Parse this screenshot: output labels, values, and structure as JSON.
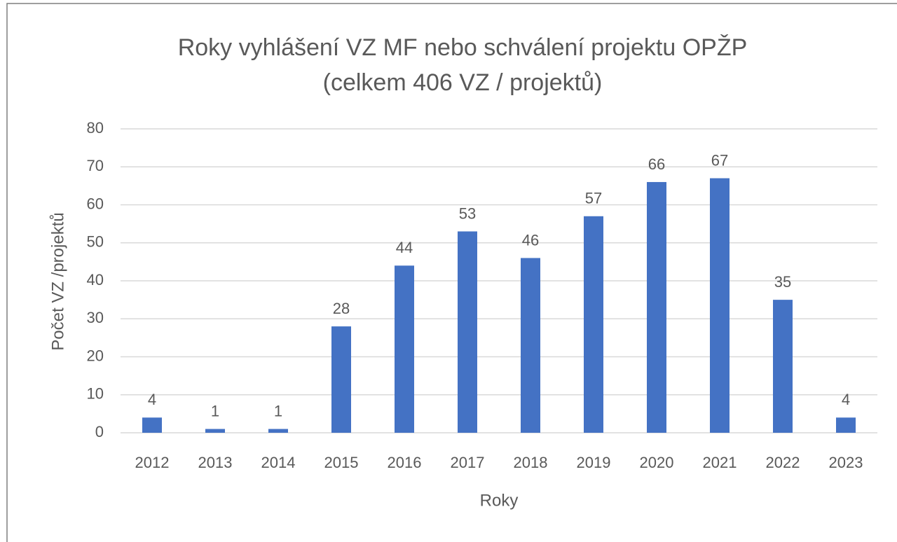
{
  "chart_data": {
    "type": "bar",
    "title": "Roky vyhlášení VZ MF nebo schválení projektu OPŽP",
    "subtitle": "(celkem 406 VZ / projektů)",
    "x_label": "Roky",
    "y_label": "Počet VZ /projektů",
    "categories": [
      "2012",
      "2013",
      "2014",
      "2015",
      "2016",
      "2017",
      "2018",
      "2019",
      "2020",
      "2021",
      "2022",
      "2023"
    ],
    "values": [
      4,
      1,
      1,
      28,
      44,
      53,
      46,
      57,
      66,
      67,
      35,
      4
    ],
    "color": "#4472c4",
    "ylim": [
      0,
      80
    ],
    "yticks": [
      0,
      10,
      20,
      30,
      40,
      50,
      60,
      70,
      80
    ],
    "grid": true
  }
}
